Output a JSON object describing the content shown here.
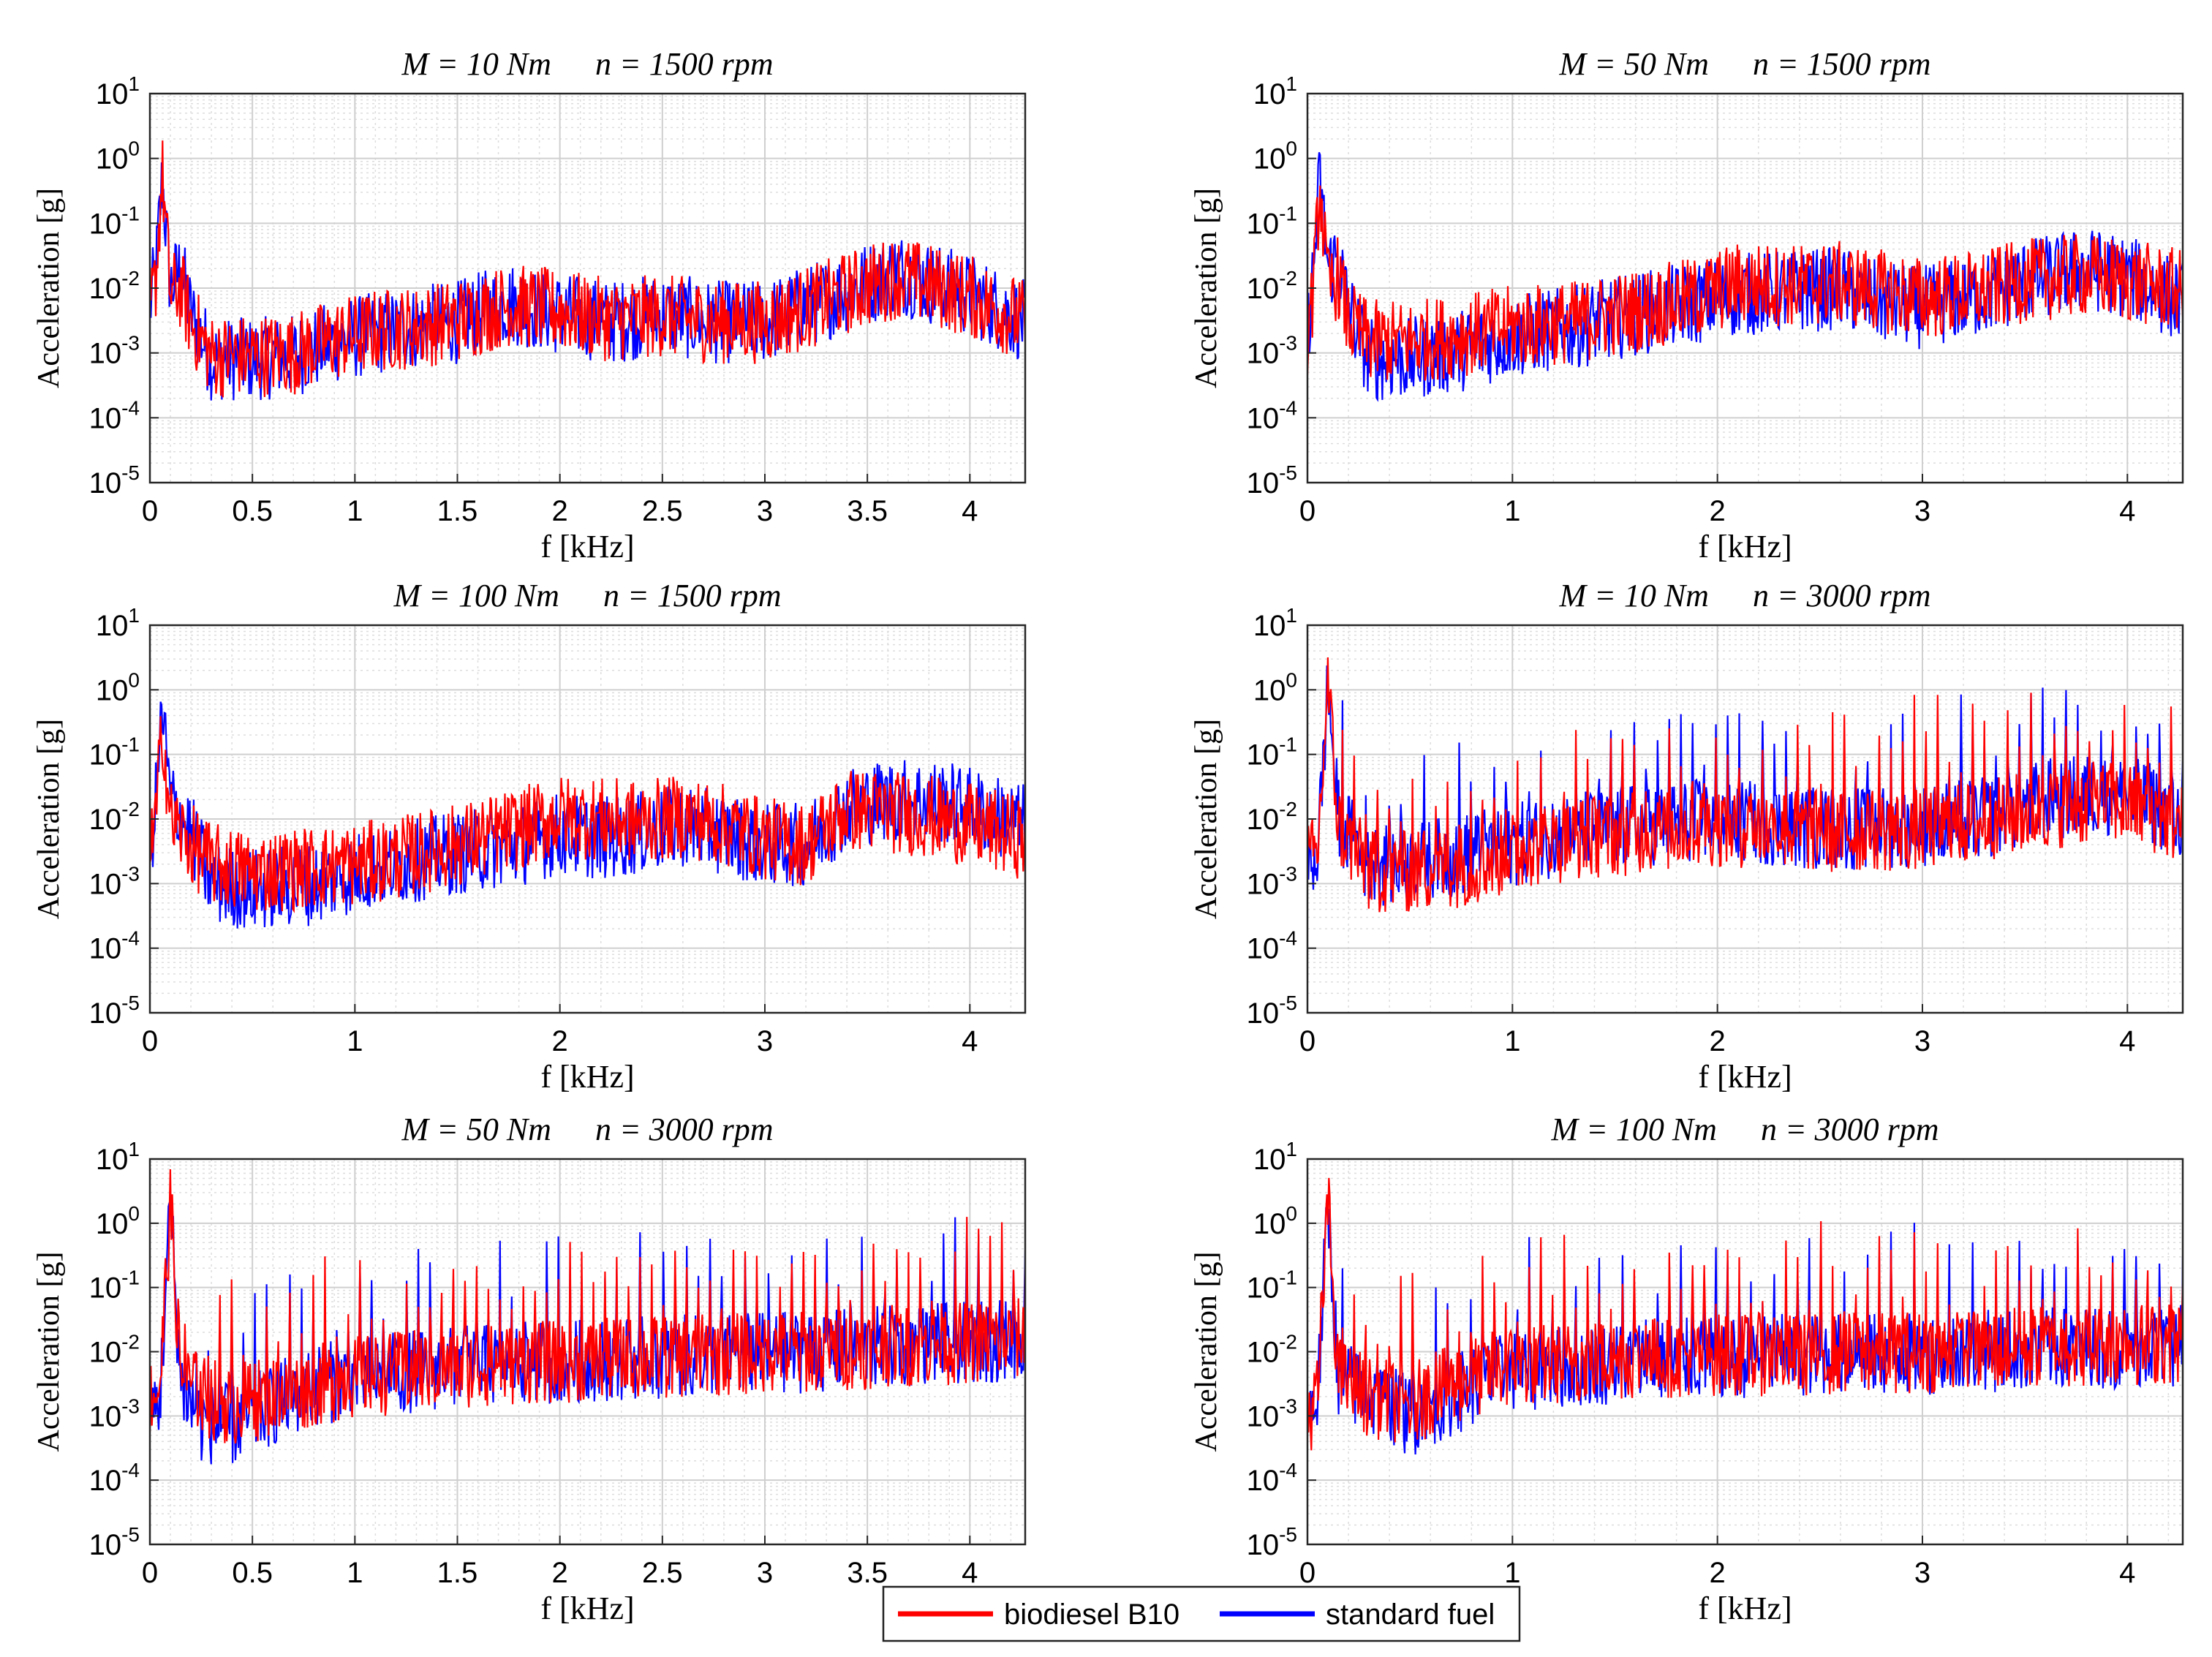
{
  "colors": {
    "biodiesel": "#ff0000",
    "standard": "#0000ff",
    "grid": "#cfcfcf",
    "minor_grid": "#dddddd",
    "axis": "#262626"
  },
  "legend": {
    "position": "bottom-center",
    "entries": [
      {
        "label": "biodiesel B10",
        "color": "#ff0000"
      },
      {
        "label": "standard fuel",
        "color": "#0000ff"
      }
    ]
  },
  "chart_data": [
    {
      "type": "line",
      "title_m": "M = 10 Nm",
      "title_n": "n = 1500 rpm",
      "xlabel": "f [kHz]",
      "ylabel": "Acceleration [g]",
      "xlim": [
        0,
        4.27
      ],
      "ylim_exp": [
        -5,
        1
      ],
      "xticks": [
        "0",
        "0.5",
        "1",
        "1.5",
        "2",
        "2.5",
        "3",
        "3.5",
        "4"
      ],
      "xtick_values": [
        0,
        0.5,
        1,
        1.5,
        2,
        2.5,
        3,
        3.5,
        4
      ],
      "yticks": [
        "10-5",
        "10-4",
        "10-3",
        "10-2",
        "10-1",
        "100",
        "101"
      ],
      "series": [
        {
          "name": "standard fuel",
          "color": "#0000ff",
          "x": [
            0,
            0.03,
            0.06,
            0.1,
            0.15,
            0.2,
            0.3,
            0.5,
            0.7,
            0.9,
            1.1,
            1.3,
            1.5,
            1.75,
            2.0,
            2.25,
            2.5,
            2.75,
            3.0,
            3.25,
            3.5,
            3.65,
            3.8,
            4.0,
            4.27
          ],
          "y": [
            0.005,
            0.02,
            0.5,
            0.01,
            0.02,
            0.004,
            0.0008,
            0.0008,
            0.0009,
            0.0015,
            0.002,
            0.0025,
            0.003,
            0.006,
            0.004,
            0.003,
            0.004,
            0.003,
            0.003,
            0.006,
            0.012,
            0.018,
            0.012,
            0.008,
            0.003
          ]
        },
        {
          "name": "biodiesel B10",
          "color": "#ff0000",
          "x": [
            0,
            0.03,
            0.06,
            0.1,
            0.15,
            0.2,
            0.3,
            0.5,
            0.7,
            0.9,
            1.1,
            1.3,
            1.5,
            1.75,
            2.0,
            2.25,
            2.5,
            2.75,
            3.0,
            3.25,
            3.5,
            3.65,
            3.8,
            4.0,
            4.27
          ],
          "y": [
            0.004,
            0.015,
            0.6,
            0.008,
            0.01,
            0.003,
            0.0009,
            0.0009,
            0.001,
            0.0016,
            0.0022,
            0.0025,
            0.0032,
            0.0055,
            0.0045,
            0.0032,
            0.0038,
            0.003,
            0.003,
            0.0055,
            0.011,
            0.015,
            0.011,
            0.0075,
            0.003
          ]
        }
      ]
    },
    {
      "type": "line",
      "title_m": "M = 50 Nm",
      "title_n": "n = 1500 rpm",
      "xlabel": "f [kHz]",
      "ylabel": "Acceleration [g]",
      "xlim": [
        0,
        4.27
      ],
      "ylim_exp": [
        -5,
        1
      ],
      "xticks": [
        "0",
        "1",
        "2",
        "3",
        "4"
      ],
      "xtick_values": [
        0,
        1,
        2,
        3,
        4
      ],
      "yticks": [
        "10-5",
        "10-4",
        "10-3",
        "10-2",
        "10-1",
        "100",
        "101"
      ],
      "series": [
        {
          "name": "standard fuel",
          "color": "#0000ff",
          "x": [
            0,
            0.03,
            0.06,
            0.1,
            0.15,
            0.2,
            0.3,
            0.5,
            0.8,
            1.0,
            1.3,
            1.6,
            1.9,
            2.1,
            2.4,
            2.6,
            2.8,
            3.0,
            3.3,
            3.5,
            3.8,
            4.0,
            4.27
          ],
          "y": [
            0.002,
            0.02,
            0.5,
            0.02,
            0.03,
            0.005,
            0.0008,
            0.0008,
            0.0012,
            0.0018,
            0.0025,
            0.004,
            0.006,
            0.008,
            0.009,
            0.01,
            0.006,
            0.005,
            0.008,
            0.013,
            0.02,
            0.015,
            0.006
          ]
        },
        {
          "name": "biodiesel B10",
          "color": "#ff0000",
          "x": [
            0,
            0.03,
            0.06,
            0.1,
            0.15,
            0.2,
            0.3,
            0.5,
            0.8,
            1.0,
            1.3,
            1.6,
            1.9,
            2.1,
            2.4,
            2.6,
            2.8,
            3.0,
            3.3,
            3.5,
            3.8,
            4.0,
            4.27
          ],
          "y": [
            0.002,
            0.01,
            0.4,
            0.01,
            0.015,
            0.003,
            0.0015,
            0.0015,
            0.002,
            0.0025,
            0.003,
            0.0045,
            0.007,
            0.012,
            0.011,
            0.012,
            0.009,
            0.007,
            0.009,
            0.013,
            0.016,
            0.013,
            0.009
          ]
        }
      ]
    },
    {
      "type": "line",
      "title_m": "M = 100 Nm",
      "title_n": "n = 1500 rpm",
      "xlabel": "f [kHz]",
      "ylabel": "Acceleration [g]",
      "xlim": [
        0,
        4.27
      ],
      "ylim_exp": [
        -5,
        1
      ],
      "xticks": [
        "0",
        "1",
        "2",
        "3",
        "4"
      ],
      "xtick_values": [
        0,
        1,
        2,
        3,
        4
      ],
      "yticks": [
        "10-5",
        "10-4",
        "10-3",
        "10-2",
        "10-1",
        "100",
        "101"
      ],
      "series": [
        {
          "name": "standard fuel",
          "color": "#0000ff",
          "x": [
            0,
            0.03,
            0.06,
            0.1,
            0.2,
            0.3,
            0.5,
            0.8,
            1.0,
            1.2,
            1.5,
            1.8,
            2.0,
            2.2,
            2.4,
            2.6,
            2.8,
            3.0,
            3.2,
            3.4,
            3.6,
            3.8,
            4.0,
            4.27
          ],
          "y": [
            0.003,
            0.02,
            0.5,
            0.02,
            0.006,
            0.001,
            0.0008,
            0.001,
            0.0015,
            0.002,
            0.003,
            0.004,
            0.006,
            0.005,
            0.006,
            0.008,
            0.006,
            0.004,
            0.004,
            0.015,
            0.02,
            0.02,
            0.015,
            0.008
          ]
        },
        {
          "name": "biodiesel B10",
          "color": "#ff0000",
          "x": [
            0,
            0.03,
            0.06,
            0.1,
            0.2,
            0.3,
            0.5,
            0.8,
            1.0,
            1.2,
            1.5,
            1.8,
            2.0,
            2.2,
            2.4,
            2.6,
            2.8,
            3.0,
            3.2,
            3.4,
            3.6,
            3.8,
            4.0,
            4.27
          ],
          "y": [
            0.003,
            0.01,
            0.3,
            0.01,
            0.004,
            0.002,
            0.0015,
            0.0018,
            0.002,
            0.0025,
            0.004,
            0.007,
            0.011,
            0.01,
            0.009,
            0.011,
            0.008,
            0.005,
            0.004,
            0.014,
            0.013,
            0.011,
            0.008,
            0.005
          ]
        }
      ]
    },
    {
      "type": "line",
      "title_m": "M = 10 Nm",
      "title_n": "n = 3000 rpm",
      "xlabel": "f [kHz]",
      "ylabel": "Acceleration [g]",
      "xlim": [
        0,
        4.27
      ],
      "ylim_exp": [
        -5,
        1
      ],
      "xticks": [
        "0",
        "1",
        "2",
        "3",
        "4"
      ],
      "xtick_values": [
        0,
        1,
        2,
        3,
        4
      ],
      "yticks": [
        "10-5",
        "10-4",
        "10-3",
        "10-2",
        "10-1",
        "100",
        "101"
      ],
      "series": [
        {
          "name": "standard fuel",
          "color": "#0000ff",
          "x": [
            0,
            0.05,
            0.1,
            0.15,
            0.3,
            0.5,
            0.8,
            1.0,
            1.3,
            1.6,
            2.0,
            2.3,
            2.6,
            3.0,
            3.3,
            3.6,
            3.9,
            4.1,
            4.27
          ],
          "y": [
            0.002,
            0.003,
            1.2,
            0.01,
            0.002,
            0.002,
            0.003,
            0.004,
            0.006,
            0.008,
            0.01,
            0.008,
            0.007,
            0.008,
            0.01,
            0.02,
            0.025,
            0.018,
            0.01
          ]
        },
        {
          "name": "biodiesel B10",
          "color": "#ff0000",
          "x": [
            0,
            0.05,
            0.1,
            0.15,
            0.3,
            0.5,
            0.8,
            1.0,
            1.3,
            1.6,
            2.0,
            2.3,
            2.6,
            3.0,
            3.3,
            3.6,
            3.9,
            4.1,
            4.27
          ],
          "y": [
            0.002,
            0.003,
            1.3,
            0.008,
            0.0015,
            0.0015,
            0.002,
            0.003,
            0.005,
            0.006,
            0.008,
            0.007,
            0.006,
            0.007,
            0.009,
            0.015,
            0.018,
            0.014,
            0.008
          ]
        }
      ]
    },
    {
      "type": "line",
      "title_m": "M = 50 Nm",
      "title_n": "n = 3000 rpm",
      "xlabel": "f [kHz]",
      "ylabel": "Acceleration [g]",
      "xlim": [
        0,
        4.27
      ],
      "ylim_exp": [
        -5,
        1
      ],
      "xticks": [
        "0",
        "0.5",
        "1",
        "1.5",
        "2",
        "2.5",
        "3",
        "3.5",
        "4"
      ],
      "xtick_values": [
        0,
        0.5,
        1,
        1.5,
        2,
        2.5,
        3,
        3.5,
        4
      ],
      "yticks": [
        "10-5",
        "10-4",
        "10-3",
        "10-2",
        "10-1",
        "100",
        "101"
      ],
      "series": [
        {
          "name": "standard fuel",
          "color": "#0000ff",
          "x": [
            0,
            0.05,
            0.1,
            0.15,
            0.25,
            0.4,
            0.6,
            0.8,
            1.0,
            1.3,
            1.6,
            2.0,
            2.4,
            2.8,
            3.2,
            3.6,
            4.0,
            4.27
          ],
          "y": [
            0.001,
            0.002,
            2.2,
            0.003,
            0.0008,
            0.0007,
            0.0015,
            0.003,
            0.004,
            0.005,
            0.006,
            0.007,
            0.008,
            0.009,
            0.01,
            0.012,
            0.014,
            0.016
          ]
        },
        {
          "name": "biodiesel B10",
          "color": "#ff0000",
          "x": [
            0,
            0.05,
            0.1,
            0.15,
            0.25,
            0.4,
            0.6,
            0.8,
            1.0,
            1.3,
            1.6,
            2.0,
            2.4,
            2.8,
            3.2,
            3.6,
            4.0,
            4.27
          ],
          "y": [
            0.002,
            0.003,
            2.0,
            0.004,
            0.002,
            0.0015,
            0.002,
            0.003,
            0.004,
            0.005,
            0.006,
            0.007,
            0.008,
            0.009,
            0.01,
            0.012,
            0.014,
            0.016
          ]
        }
      ]
    },
    {
      "type": "line",
      "title_m": "M = 100 Nm",
      "title_n": "n = 3000 rpm",
      "xlabel": "f [kHz]",
      "ylabel": "Acceleration [g]",
      "xlim": [
        0,
        4.27
      ],
      "ylim_exp": [
        -5,
        1
      ],
      "xticks": [
        "0",
        "1",
        "2",
        "3",
        "4"
      ],
      "xtick_values": [
        0,
        1,
        2,
        3,
        4
      ],
      "yticks": [
        "10-5",
        "10-4",
        "10-3",
        "10-2",
        "10-1",
        "100",
        "101"
      ],
      "series": [
        {
          "name": "standard fuel",
          "color": "#0000ff",
          "x": [
            0,
            0.05,
            0.1,
            0.15,
            0.3,
            0.5,
            0.8,
            1.0,
            1.3,
            1.6,
            2.0,
            2.4,
            2.8,
            3.2,
            3.6,
            4.0,
            4.27
          ],
          "y": [
            0.001,
            0.002,
            2.0,
            0.004,
            0.002,
            0.001,
            0.003,
            0.005,
            0.006,
            0.007,
            0.008,
            0.009,
            0.009,
            0.01,
            0.011,
            0.012,
            0.013
          ]
        },
        {
          "name": "biodiesel B10",
          "color": "#ff0000",
          "x": [
            0,
            0.05,
            0.1,
            0.15,
            0.3,
            0.5,
            0.8,
            1.0,
            1.3,
            1.6,
            2.0,
            2.4,
            2.8,
            3.2,
            3.6,
            4.0,
            4.27
          ],
          "y": [
            0.001,
            0.002,
            2.2,
            0.004,
            0.002,
            0.0015,
            0.004,
            0.006,
            0.007,
            0.008,
            0.009,
            0.009,
            0.01,
            0.01,
            0.012,
            0.013,
            0.014
          ]
        }
      ]
    }
  ]
}
